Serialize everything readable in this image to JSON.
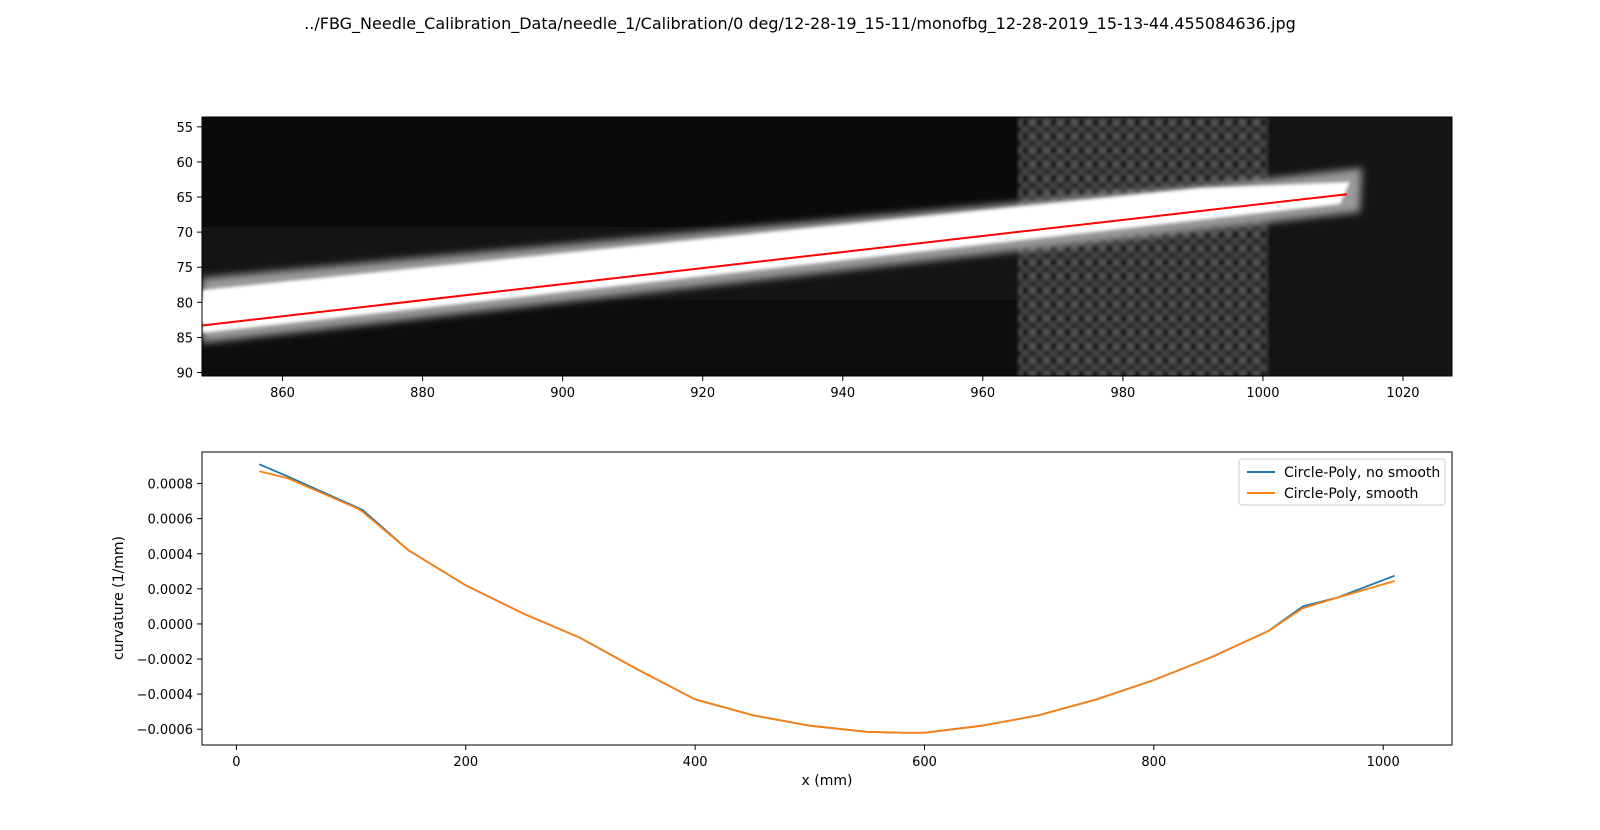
{
  "figure": {
    "title": "../FBG_Needle_Calibration_Data/needle_1/Calibration/0 deg/12-28-19_15-11/monofbg_12-28-2019_15-13-44.455084636.jpg"
  },
  "chart_data": [
    {
      "type": "image",
      "description_visible": "grayscale needle image with fitted line",
      "x_ticks": [
        860,
        880,
        900,
        920,
        940,
        960,
        980,
        1000,
        1020
      ],
      "y_ticks": [
        55,
        60,
        65,
        70,
        75,
        80,
        85,
        90
      ],
      "xlim": [
        848.5,
        1027
      ],
      "ylim": [
        90.5,
        53.6
      ],
      "y_inverted": true,
      "fit_line": {
        "color": "#ff0000",
        "x": [
          848.5,
          1012
        ],
        "y": [
          83.3,
          64.6
        ]
      }
    },
    {
      "type": "line",
      "xlabel": "x (mm)",
      "ylabel": "curvature (1/mm)",
      "xlim": [
        -30,
        1060
      ],
      "ylim": [
        -0.00069,
        0.00098
      ],
      "x_ticks": [
        0,
        200,
        400,
        600,
        800,
        1000
      ],
      "y_ticks": [
        0.0008,
        0.0006,
        0.0004,
        0.0002,
        0.0,
        -0.0002,
        -0.0004,
        -0.0006
      ],
      "y_tick_labels": [
        "0.0008",
        "0.0006",
        "0.0004",
        "0.0002",
        "0.0000",
        "−0.0002",
        "−0.0004",
        "−0.0006"
      ],
      "legend_position": "top-right",
      "series": [
        {
          "name": "Circle-Poly, no smooth",
          "color": "#1f77b4",
          "x": [
            20,
            45,
            105,
            110,
            150,
            200,
            250,
            300,
            350,
            400,
            450,
            500,
            550,
            580,
            600,
            650,
            700,
            750,
            800,
            850,
            900,
            930,
            960,
            1010
          ],
          "y": [
            0.00091,
            0.00084,
            0.000665,
            0.00065,
            0.00042,
            0.00022,
            6e-05,
            -8e-05,
            -0.00026,
            -0.00043,
            -0.00052,
            -0.00058,
            -0.000615,
            -0.00062,
            -0.00062,
            -0.00058,
            -0.00052,
            -0.00043,
            -0.00032,
            -0.00019,
            -4e-05,
            0.0001,
            0.00015,
            0.000275
          ]
        },
        {
          "name": "Circle-Poly, smooth",
          "color": "#ff7f0e",
          "x": [
            20,
            45,
            105,
            110,
            150,
            200,
            250,
            300,
            350,
            400,
            450,
            500,
            550,
            580,
            600,
            650,
            700,
            750,
            800,
            850,
            900,
            930,
            960,
            1010
          ],
          "y": [
            0.00087,
            0.00083,
            0.00066,
            0.00064,
            0.00042,
            0.00022,
            6e-05,
            -8e-05,
            -0.00026,
            -0.00043,
            -0.00052,
            -0.00058,
            -0.000615,
            -0.00062,
            -0.00062,
            -0.00058,
            -0.00052,
            -0.00043,
            -0.00032,
            -0.00019,
            -4e-05,
            9e-05,
            0.00015,
            0.000245
          ]
        }
      ]
    }
  ]
}
